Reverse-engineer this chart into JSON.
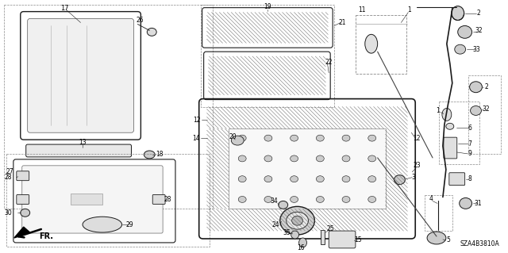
{
  "bg_color": "#ffffff",
  "fig_width": 6.4,
  "fig_height": 3.19,
  "dpi": 100,
  "diagram_code": "SZA4B3810A",
  "line_color": "#1a1a1a",
  "text_color": "#000000",
  "fs": 5.5
}
